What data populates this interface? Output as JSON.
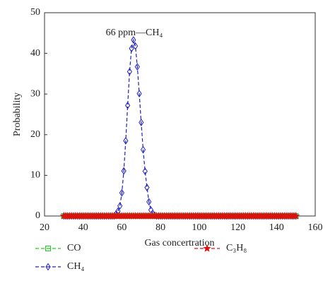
{
  "chart_data": {
    "type": "line",
    "annotation": "66 ppm—CH₄",
    "x_label": "Gas concertration",
    "y_label": "Probability",
    "x": [
      30,
      31,
      32,
      33,
      34,
      35,
      36,
      37,
      38,
      39,
      40,
      41,
      42,
      43,
      44,
      45,
      46,
      47,
      48,
      49,
      50,
      51,
      52,
      53,
      54,
      55,
      56,
      57,
      58,
      59,
      60,
      61,
      62,
      63,
      64,
      65,
      66,
      67,
      68,
      69,
      70,
      71,
      72,
      73,
      74,
      75,
      76,
      77,
      78,
      79,
      80,
      81,
      82,
      83,
      84,
      85,
      86,
      87,
      88,
      89,
      90,
      91,
      92,
      93,
      94,
      95,
      96,
      97,
      98,
      99,
      100,
      101,
      102,
      103,
      104,
      105,
      106,
      107,
      108,
      109,
      110,
      111,
      112,
      113,
      114,
      115,
      116,
      117,
      118,
      119,
      120,
      121,
      122,
      123,
      124,
      125,
      126,
      127,
      128,
      129,
      130,
      131,
      132,
      133,
      134,
      135,
      136,
      137,
      138,
      139,
      140,
      141,
      142,
      143,
      144,
      145,
      146,
      147,
      148,
      149,
      150
    ],
    "series": [
      {
        "name": "CH₄",
        "color": "#2020c0",
        "marker": "diamond",
        "values": [
          0,
          0,
          0,
          0,
          0,
          0,
          0,
          0,
          0,
          0,
          0,
          0,
          0,
          0,
          0,
          0,
          0,
          0,
          0,
          0,
          0,
          0,
          0,
          0,
          0,
          0,
          0,
          0.5,
          1.2,
          2.5,
          5.7,
          11.1,
          18.5,
          27.2,
          35.5,
          41.2,
          43.3,
          41.8,
          36.7,
          30.1,
          23,
          16.3,
          11,
          7,
          3.5,
          1.5,
          0.6,
          0.2,
          0,
          0,
          0,
          0,
          0,
          0,
          0,
          0,
          0,
          0,
          0,
          0,
          0,
          0,
          0,
          0,
          0,
          0,
          0,
          0,
          0,
          0,
          0,
          0,
          0,
          0,
          0,
          0,
          0,
          0,
          0,
          0,
          0,
          0,
          0,
          0,
          0,
          0,
          0,
          0,
          0,
          0,
          0,
          0,
          0,
          0,
          0,
          0,
          0,
          0,
          0,
          0,
          0,
          0,
          0,
          0,
          0,
          0,
          0,
          0,
          0,
          0,
          0,
          0,
          0,
          0,
          0,
          0,
          0,
          0,
          0,
          0,
          0
        ]
      },
      {
        "name": "CO",
        "color": "#22cc22",
        "marker": "square",
        "values": [
          0,
          0,
          0,
          0,
          0,
          0,
          0,
          0,
          0,
          0,
          0,
          0,
          0,
          0,
          0,
          0,
          0,
          0,
          0,
          0,
          0,
          0,
          0,
          0,
          0,
          0,
          0,
          0,
          0,
          0,
          0,
          0,
          0,
          0,
          0,
          0,
          0,
          0,
          0,
          0,
          0,
          0,
          0,
          0,
          0,
          0,
          0,
          0,
          0,
          0,
          0,
          0,
          0,
          0,
          0,
          0,
          0,
          0,
          0,
          0,
          0,
          0,
          0,
          0,
          0,
          0,
          0,
          0,
          0,
          0,
          0,
          0,
          0,
          0,
          0,
          0,
          0,
          0,
          0,
          0,
          0,
          0,
          0,
          0,
          0,
          0,
          0,
          0,
          0,
          0,
          0,
          0,
          0,
          0,
          0,
          0,
          0,
          0,
          0,
          0,
          0,
          0,
          0,
          0,
          0,
          0,
          0,
          0,
          0,
          0,
          0,
          0,
          0,
          0,
          0,
          0,
          0,
          0,
          0,
          0,
          0
        ]
      },
      {
        "name": "C₃H₈",
        "color": "#dd1111",
        "marker": "star",
        "values": [
          0,
          0,
          0,
          0,
          0,
          0,
          0,
          0,
          0,
          0,
          0,
          0,
          0,
          0,
          0,
          0,
          0,
          0,
          0,
          0,
          0,
          0,
          0,
          0,
          0,
          0,
          0,
          0,
          0,
          0,
          0,
          0,
          0,
          0,
          0,
          0,
          0,
          0,
          0,
          0,
          0,
          0,
          0,
          0,
          0,
          0,
          0,
          0,
          0,
          0,
          0,
          0,
          0,
          0,
          0,
          0,
          0,
          0,
          0,
          0,
          0,
          0,
          0,
          0,
          0,
          0,
          0,
          0,
          0,
          0,
          0,
          0,
          0,
          0,
          0,
          0,
          0,
          0,
          0,
          0,
          0,
          0,
          0,
          0,
          0,
          0,
          0,
          0,
          0,
          0,
          0,
          0,
          0,
          0,
          0,
          0,
          0,
          0,
          0,
          0,
          0,
          0,
          0,
          0,
          0,
          0,
          0,
          0,
          0,
          0,
          0,
          0,
          0,
          0,
          0,
          0,
          0,
          0,
          0,
          0,
          0
        ]
      }
    ],
    "xlim": [
      20,
      160
    ],
    "xticks": [
      20,
      40,
      60,
      80,
      100,
      120,
      140,
      160
    ],
    "ylim": [
      0,
      50
    ],
    "yticks": [
      0,
      10,
      20,
      30,
      40,
      50
    ]
  }
}
